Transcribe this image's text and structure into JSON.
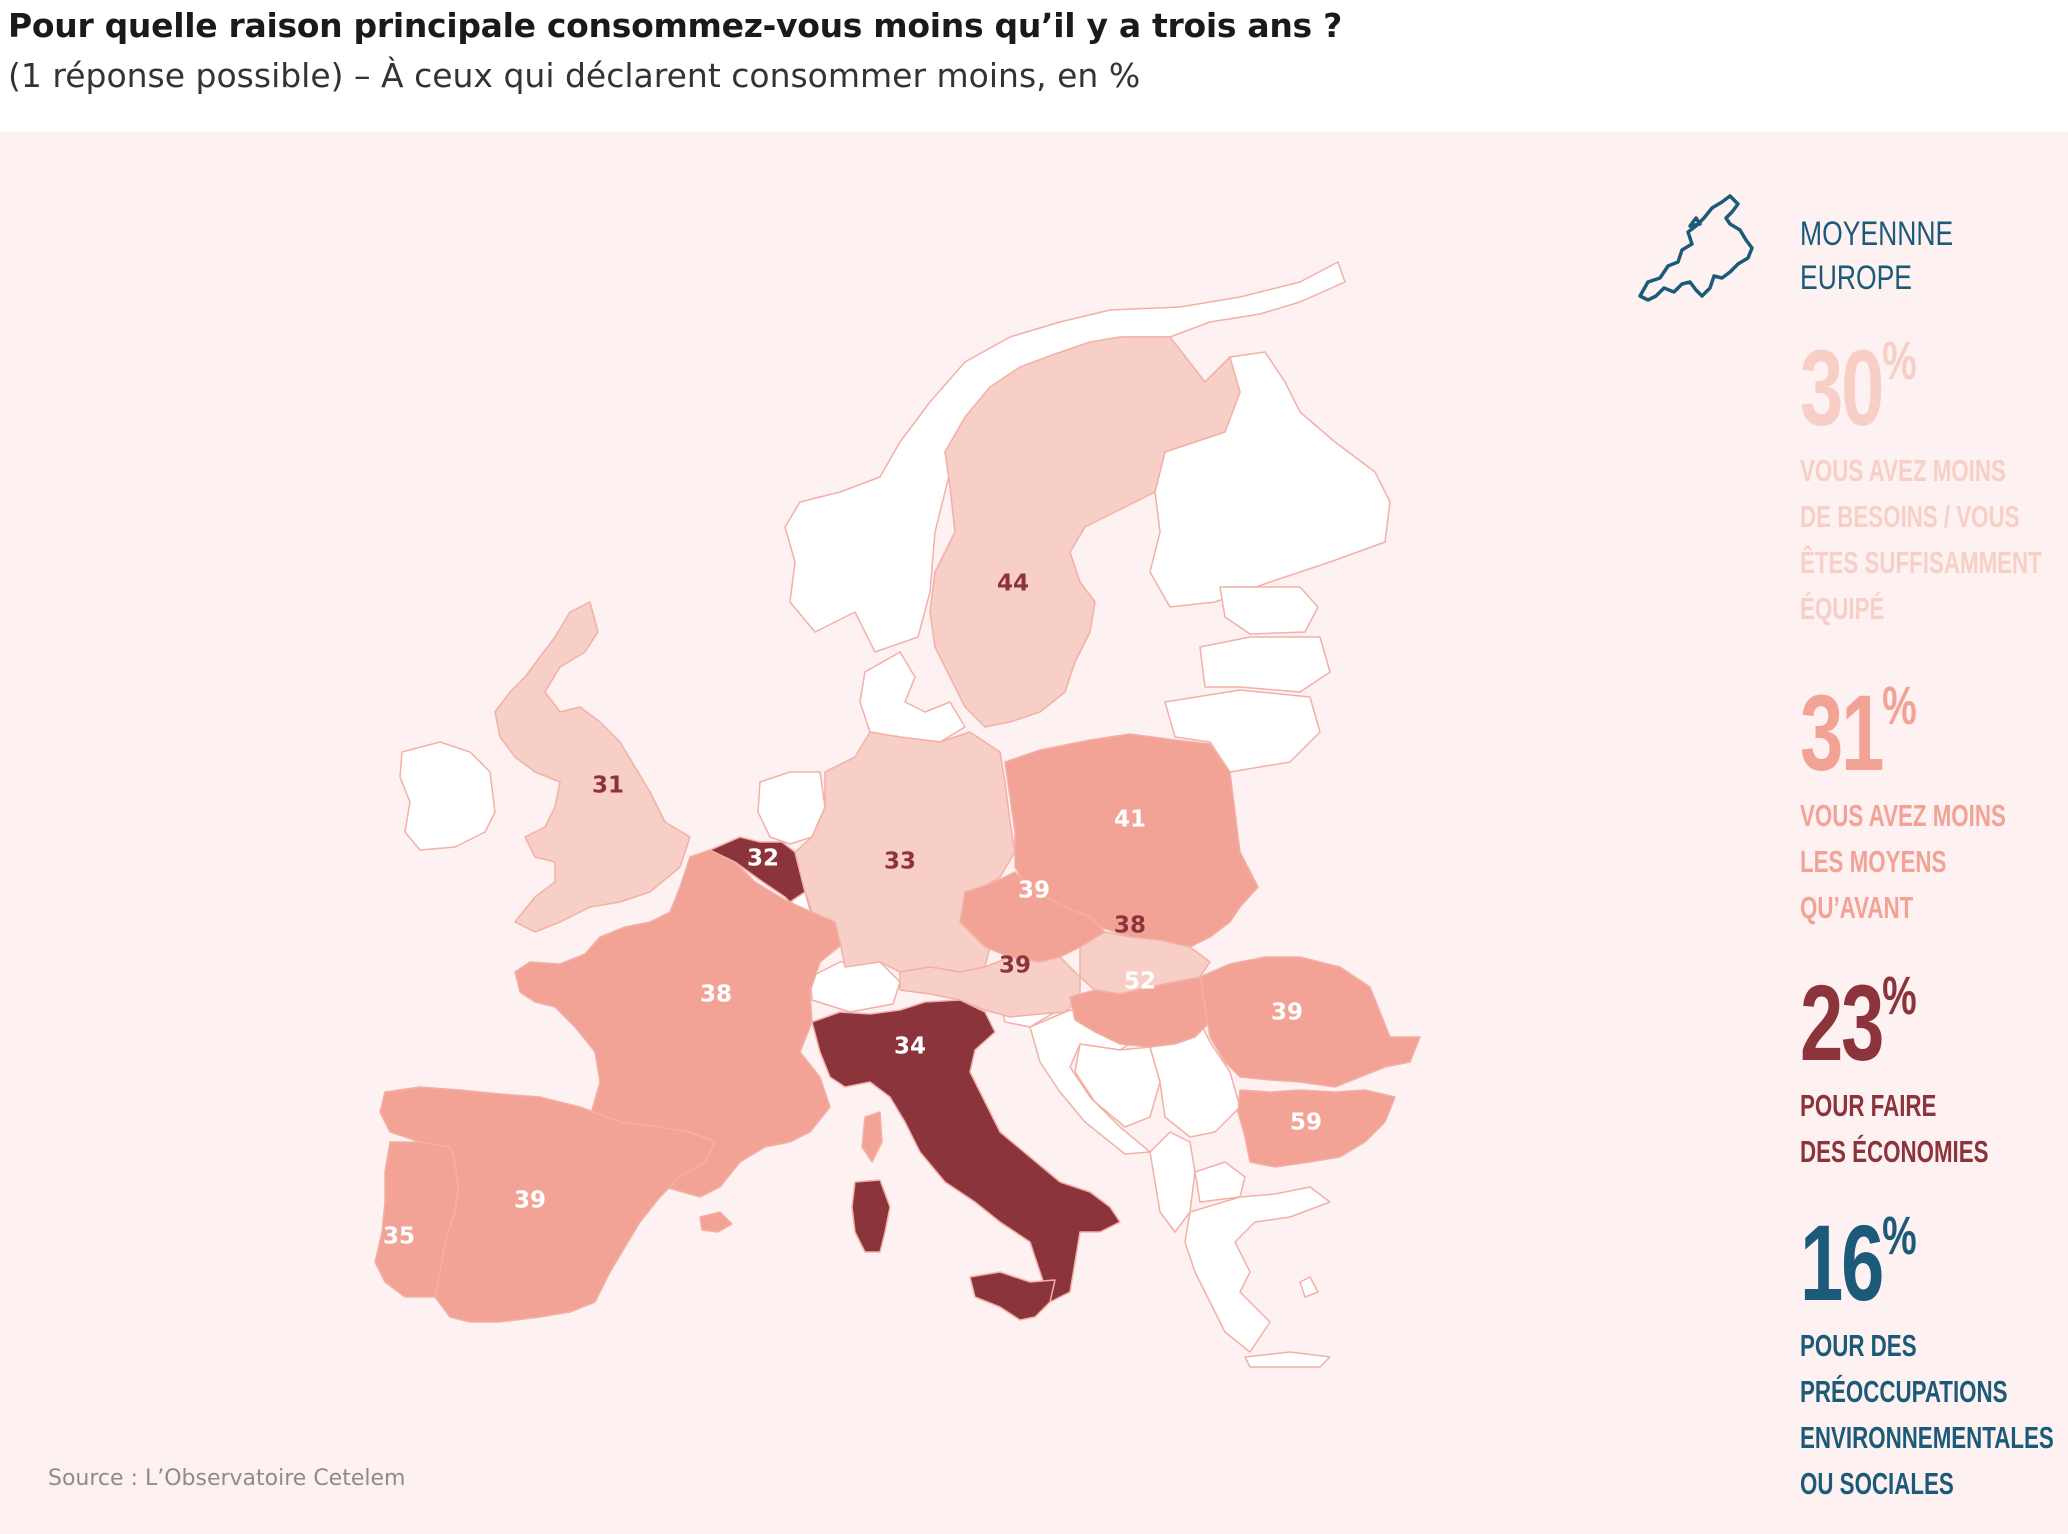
{
  "title": "Pour quelle raison principale consommez-vous moins qu’il y a trois ans ?",
  "subtitle": "(1 réponse possible) – À ceux qui déclarent consommer moins, en %",
  "source": "Source : L’Observatoire Cetelem",
  "colors": {
    "panel_bg": "#fdf1f1",
    "no_data": "#ffffff",
    "light": "#f8cfc7",
    "medium": "#f2a396",
    "dark": "#8c343c",
    "border": "#f2b0a6",
    "label_on_light": "#8c343c",
    "label_on_medium": "#ffffff",
    "label_on_dark": "#ffffff",
    "accent_blue": "#1c5a7a"
  },
  "map": {
    "countries": [
      {
        "name": "Royaume-Uni",
        "value": "31",
        "shade": "light"
      },
      {
        "name": "Belgique",
        "value": "32",
        "shade": "dark"
      },
      {
        "name": "Allemagne",
        "value": "33",
        "shade": "light"
      },
      {
        "name": "Italie",
        "value": "34",
        "shade": "dark"
      },
      {
        "name": "Portugal",
        "value": "35",
        "shade": "medium"
      },
      {
        "name": "Espagne",
        "value": "39",
        "shade": "medium"
      },
      {
        "name": "France",
        "value": "38",
        "shade": "medium"
      },
      {
        "name": "Suède",
        "value": "44",
        "shade": "light"
      },
      {
        "name": "Pologne",
        "value": "41",
        "shade": "medium"
      },
      {
        "name": "République tchèque",
        "value": "39",
        "shade": "medium"
      },
      {
        "name": "Slovaquie",
        "value": "38",
        "shade": "light"
      },
      {
        "name": "Autriche",
        "value": "39",
        "shade": "light"
      },
      {
        "name": "Hongrie",
        "value": "52",
        "shade": "medium"
      },
      {
        "name": "Roumanie",
        "value": "39",
        "shade": "medium"
      },
      {
        "name": "Bulgarie",
        "value": "59",
        "shade": "medium"
      }
    ]
  },
  "legend": {
    "icon": "europe-map-icon",
    "title_line1": "MOYENNNE",
    "title_line2": "EUROPE",
    "items": [
      {
        "value": "30",
        "unit": "%",
        "color": "#f8cfc7",
        "lines": [
          "VOUS AVEZ MOINS",
          "DE BESOINS / VOUS",
          "ÊTES SUFFISAMMENT",
          "ÉQUIPÉ"
        ]
      },
      {
        "value": "31",
        "unit": "%",
        "color": "#f2a396",
        "lines": [
          "VOUS AVEZ MOINS",
          "LES MOYENS",
          "QU’AVANT"
        ]
      },
      {
        "value": "23",
        "unit": "%",
        "color": "#8c343c",
        "lines": [
          "POUR FAIRE",
          "DES ÉCONOMIES"
        ]
      },
      {
        "value": "16",
        "unit": "%",
        "color": "#1c5a7a",
        "lines": [
          "POUR DES",
          "PRÉOCCUPATIONS",
          "ENVIRONNEMENTALES",
          "OU SOCIALES"
        ]
      }
    ]
  }
}
